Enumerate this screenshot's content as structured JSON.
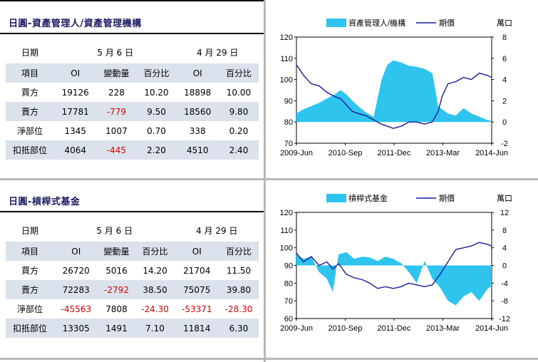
{
  "panels": [
    {
      "title": "日圓-資產管理人/資產管理機構",
      "dates": {
        "label": "日期",
        "current": "5 月 6 日",
        "previous": "4 月 29 日"
      },
      "columns": [
        "項目",
        "OI",
        "變動量",
        "百分比",
        "OI",
        "百分比"
      ],
      "rows": [
        {
          "item": "買方",
          "oi": "19126",
          "change": "228",
          "pct": "10.20",
          "prev_oi": "18898",
          "prev_pct": "10.00",
          "change_neg": false,
          "pct_neg": false,
          "prev_oi_neg": false,
          "prev_pct_neg": false
        },
        {
          "item": "賣方",
          "oi": "17781",
          "change": "-779",
          "pct": "9.50",
          "prev_oi": "18560",
          "prev_pct": "9.80",
          "change_neg": true,
          "pct_neg": false,
          "prev_oi_neg": false,
          "prev_pct_neg": false
        },
        {
          "item": "淨部位",
          "oi": "1345",
          "change": "1007",
          "pct": "0.70",
          "prev_oi": "338",
          "prev_pct": "0.20",
          "change_neg": false,
          "pct_neg": false,
          "prev_oi_neg": false,
          "prev_pct_neg": false
        },
        {
          "item": "扣抵部位",
          "oi": "4064",
          "change": "-445",
          "pct": "2.20",
          "prev_oi": "4510",
          "prev_pct": "2.40",
          "change_neg": true,
          "pct_neg": false,
          "prev_oi_neg": false,
          "prev_pct_neg": false
        }
      ]
    },
    {
      "title": "日圓-槓桿式基金",
      "dates": {
        "label": "日期",
        "current": "5 月 6 日",
        "previous": "4 月 29 日"
      },
      "columns": [
        "項目",
        "OI",
        "變動量",
        "百分比",
        "OI",
        "百分比"
      ],
      "rows": [
        {
          "item": "買方",
          "oi": "26720",
          "change": "5016",
          "pct": "14.20",
          "prev_oi": "21704",
          "prev_pct": "11.50",
          "change_neg": false,
          "pct_neg": false,
          "prev_oi_neg": false,
          "prev_pct_neg": false
        },
        {
          "item": "賣方",
          "oi": "72283",
          "change": "-2792",
          "pct": "38.50",
          "prev_oi": "75075",
          "prev_pct": "39.80",
          "change_neg": true,
          "pct_neg": false,
          "prev_oi_neg": false,
          "prev_pct_neg": false
        },
        {
          "item": "淨部位",
          "oi": "-45563",
          "change": "7808",
          "pct": "-24.30",
          "prev_oi": "-53371",
          "prev_pct": "-28.30",
          "change_neg": false,
          "pct_neg": true,
          "prev_oi_neg": true,
          "prev_pct_neg": true,
          "oi_neg": true
        },
        {
          "item": "扣抵部位",
          "oi": "13305",
          "change": "1491",
          "pct": "7.10",
          "prev_oi": "11814",
          "prev_pct": "6.30",
          "change_neg": false,
          "pct_neg": false,
          "prev_oi_neg": false,
          "prev_pct_neg": false
        }
      ]
    }
  ],
  "chart_data": [
    {
      "type": "area",
      "xlabel": "",
      "ylabel": "",
      "x_ticks": [
        "2009-Jun",
        "2010-Sep",
        "2011-Dec",
        "2013-Mar",
        "2014-Jun"
      ],
      "y_left": {
        "min": 70,
        "max": 120,
        "step": 10
      },
      "y_right": {
        "min": -2,
        "max": 8,
        "step": 2,
        "unit_label": "萬口"
      },
      "legend_position": "top",
      "colors": {
        "area": "#2ec4ee",
        "line": "#1a1a9a"
      },
      "series": [
        {
          "name": "資產管理人/機構",
          "axis": "right",
          "kind": "area",
          "x": [
            2009.42,
            2009.6,
            2009.8,
            2010.0,
            2010.2,
            2010.4,
            2010.55,
            2010.7,
            2010.85,
            2011.0,
            2011.2,
            2011.4,
            2011.6,
            2011.75,
            2011.9,
            2012.1,
            2012.3,
            2012.5,
            2012.7,
            2012.9,
            2013.05,
            2013.15,
            2013.3,
            2013.5,
            2013.7,
            2013.9,
            2014.1,
            2014.3,
            2014.42
          ],
          "values": [
            0.8,
            1.2,
            1.5,
            1.8,
            2.2,
            2.6,
            3.0,
            2.6,
            2.0,
            1.5,
            0.9,
            0.5,
            4.0,
            5.4,
            5.8,
            5.6,
            5.3,
            5.2,
            5.0,
            4.6,
            1.5,
            1.2,
            0.8,
            0.6,
            1.3,
            0.8,
            0.5,
            0.2,
            0.1
          ]
        },
        {
          "name": "期價",
          "axis": "left",
          "kind": "line",
          "x": [
            2009.42,
            2009.6,
            2009.8,
            2010.0,
            2010.2,
            2010.4,
            2010.55,
            2010.7,
            2010.85,
            2011.0,
            2011.2,
            2011.4,
            2011.6,
            2011.75,
            2011.9,
            2012.1,
            2012.3,
            2012.5,
            2012.7,
            2012.9,
            2013.05,
            2013.15,
            2013.3,
            2013.5,
            2013.7,
            2013.9,
            2014.1,
            2014.3,
            2014.42
          ],
          "values": [
            107,
            102,
            98,
            97,
            94,
            92,
            91,
            88,
            85,
            84,
            83,
            81,
            79,
            78,
            77,
            78,
            80,
            80,
            79,
            80,
            85,
            92,
            98,
            99,
            101,
            100,
            103,
            102,
            101
          ]
        }
      ]
    },
    {
      "type": "area",
      "xlabel": "",
      "ylabel": "",
      "x_ticks": [
        "2009-Jun",
        "2010-Sep",
        "2011-Dec",
        "2013-Mar",
        "2014-Jun"
      ],
      "y_left": {
        "min": 60,
        "max": 120,
        "step": 10
      },
      "y_right": {
        "min": -12,
        "max": 12,
        "step": 4,
        "unit_label": "萬口"
      },
      "legend_position": "top",
      "colors": {
        "area": "#2ec4ee",
        "line": "#1a1a9a"
      },
      "series": [
        {
          "name": "槓桿式基金",
          "axis": "right",
          "kind": "area",
          "x": [
            2009.42,
            2009.6,
            2009.8,
            2010.0,
            2010.2,
            2010.35,
            2010.5,
            2010.7,
            2010.9,
            2011.1,
            2011.3,
            2011.5,
            2011.7,
            2011.9,
            2012.1,
            2012.3,
            2012.5,
            2012.7,
            2012.9,
            2013.1,
            2013.3,
            2013.5,
            2013.7,
            2013.9,
            2014.1,
            2014.3,
            2014.42
          ],
          "values": [
            2.5,
            1.5,
            2.0,
            -1.5,
            -3.0,
            -6.0,
            2.5,
            3.0,
            1.5,
            2.0,
            1.8,
            1.0,
            2.0,
            1.5,
            0.5,
            -1.5,
            -4.0,
            1.0,
            -3.0,
            -5.0,
            -8.0,
            -9.0,
            -7.0,
            -6.0,
            -8.0,
            -5.5,
            -4.5
          ]
        },
        {
          "name": "期價",
          "axis": "left",
          "kind": "line",
          "x": [
            2009.42,
            2009.6,
            2009.8,
            2010.0,
            2010.2,
            2010.35,
            2010.5,
            2010.7,
            2010.9,
            2011.1,
            2011.3,
            2011.5,
            2011.7,
            2011.9,
            2012.1,
            2012.3,
            2012.5,
            2012.7,
            2012.9,
            2013.1,
            2013.3,
            2013.5,
            2013.7,
            2013.9,
            2014.1,
            2014.3,
            2014.42
          ],
          "values": [
            97,
            92,
            95,
            90,
            92,
            88,
            91,
            85,
            83,
            82,
            80,
            77,
            78,
            77,
            78,
            80,
            79,
            78,
            79,
            85,
            92,
            99,
            100,
            101,
            103,
            102,
            101
          ]
        }
      ]
    }
  ]
}
